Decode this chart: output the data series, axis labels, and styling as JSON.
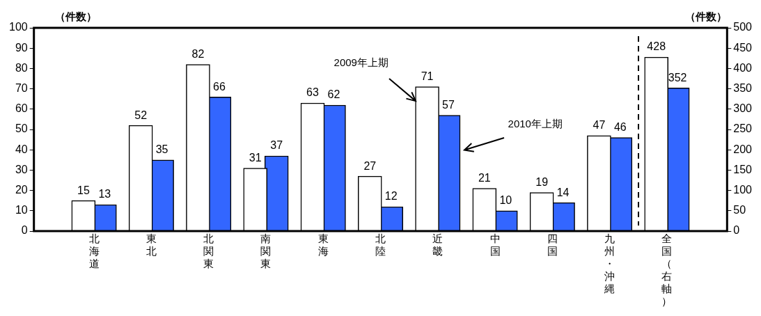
{
  "chart_data": {
    "type": "bar",
    "ylabel": "（件数）",
    "y2label": "（件数）",
    "categories": [
      "北海道",
      "東北",
      "北関東",
      "南関東",
      "東海",
      "北陸",
      "近畿",
      "中国",
      "四国",
      "九州・沖縄",
      "全国（右軸）"
    ],
    "series": [
      {
        "name": "2009年上期",
        "color": "#ffffff",
        "values": [
          15,
          52,
          82,
          31,
          63,
          27,
          71,
          21,
          19,
          47,
          null
        ]
      },
      {
        "name": "2010年上期",
        "color": "#3366ff",
        "values": [
          13,
          35,
          66,
          37,
          62,
          12,
          57,
          10,
          14,
          46,
          null
        ]
      },
      {
        "color": "#ffffff",
        "axis": "y2",
        "values": [
          null,
          null,
          null,
          null,
          null,
          null,
          null,
          null,
          null,
          null,
          428
        ]
      },
      {
        "color": "#3366ff",
        "axis": "y2",
        "values": [
          null,
          null,
          null,
          null,
          null,
          null,
          null,
          null,
          null,
          null,
          352
        ]
      }
    ],
    "ylim": [
      0,
      100
    ],
    "yticks": [
      0,
      10,
      20,
      30,
      40,
      50,
      60,
      70,
      80,
      90,
      100
    ],
    "y2lim": [
      0,
      500
    ],
    "y2ticks": [
      0,
      50,
      100,
      150,
      200,
      250,
      300,
      350,
      400,
      450,
      500
    ],
    "data_labels": true,
    "grid": false,
    "legend": false
  }
}
